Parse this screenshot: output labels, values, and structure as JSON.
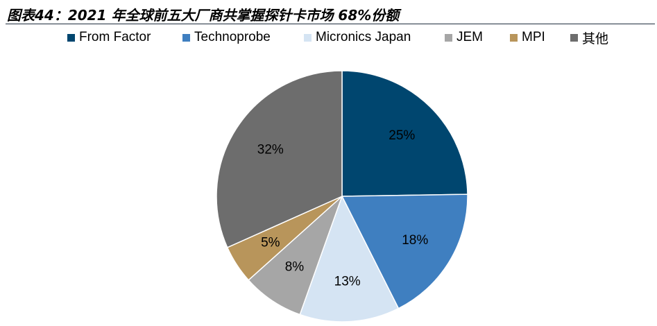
{
  "figure": {
    "title": "图表44：2021 年全球前五大厂商共掌握探针卡市场 68%份额"
  },
  "chart_data": {
    "type": "pie",
    "categories": [
      "From Factor",
      "Technoprobe",
      "Micronics Japan",
      "JEM",
      "MPI",
      "其他"
    ],
    "values": [
      25,
      18,
      13,
      8,
      5,
      32
    ],
    "value_labels": [
      "25%",
      "18%",
      "13%",
      "8%",
      "5%",
      "32%"
    ],
    "colors": [
      "#00466f",
      "#3f7fc0",
      "#d5e4f3",
      "#a6a6a6",
      "#b8955b",
      "#6d6d6d"
    ],
    "start_angle_deg": 0,
    "direction": "clockwise",
    "legend_position": "top"
  }
}
